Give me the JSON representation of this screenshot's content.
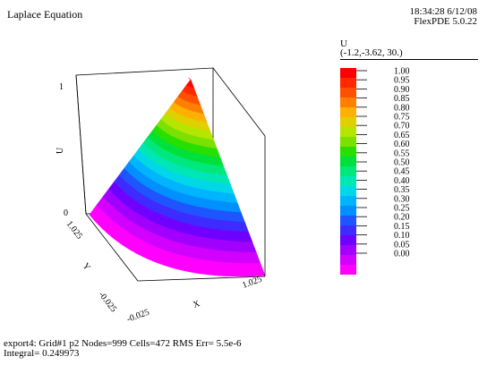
{
  "header": {
    "title": "Laplace Equation",
    "time": "18:34:28 6/12/08",
    "version": "FlexPDE 5.0.22"
  },
  "legend": {
    "variable": "U",
    "view": "(-1.2,-3.62, 30.)",
    "colors": [
      "#ff00ff",
      "#d100ff",
      "#a100ff",
      "#6f00ff",
      "#3d2bff",
      "#1f55ff",
      "#0090ff",
      "#00b4ff",
      "#00d8e8",
      "#00e6b4",
      "#00e87c",
      "#00e03c",
      "#28e000",
      "#7ce000",
      "#b4e600",
      "#e0d000",
      "#ffb000",
      "#ff8000",
      "#ff5000",
      "#ff2800",
      "#ff0000"
    ],
    "values": [
      "1.00",
      "0.95",
      "0.90",
      "0.85",
      "0.80",
      "0.75",
      "0.70",
      "0.65",
      "0.60",
      "0.55",
      "0.50",
      "0.45",
      "0.40",
      "0.35",
      "0.30",
      "0.25",
      "0.20",
      "0.15",
      "0.10",
      "0.05",
      "0.00"
    ]
  },
  "footer": {
    "line1": "export4:  Grid#1  p2  Nodes=999 Cells=472 RMS Err= 5.5e-6",
    "line2": "Integral=  0.249973"
  },
  "chart_data": {
    "type": "surface",
    "title": "Laplace Equation",
    "xlabel": "X",
    "ylabel": "Y",
    "zlabel": "U",
    "x_ticks": [
      "-0.025",
      "1.025"
    ],
    "y_ticks": [
      "-0.025",
      "1.025"
    ],
    "z_ticks": [
      "0",
      "1"
    ],
    "xlim": [
      -0.025,
      1.025
    ],
    "ylim": [
      -0.025,
      1.025
    ],
    "zlim": [
      0,
      1
    ],
    "contour_levels": [
      0.0,
      0.05,
      0.1,
      0.15,
      0.2,
      0.25,
      0.3,
      0.35,
      0.4,
      0.45,
      0.5,
      0.55,
      0.6,
      0.65,
      0.7,
      0.75,
      0.8,
      0.85,
      0.9,
      0.95,
      1.0
    ]
  }
}
